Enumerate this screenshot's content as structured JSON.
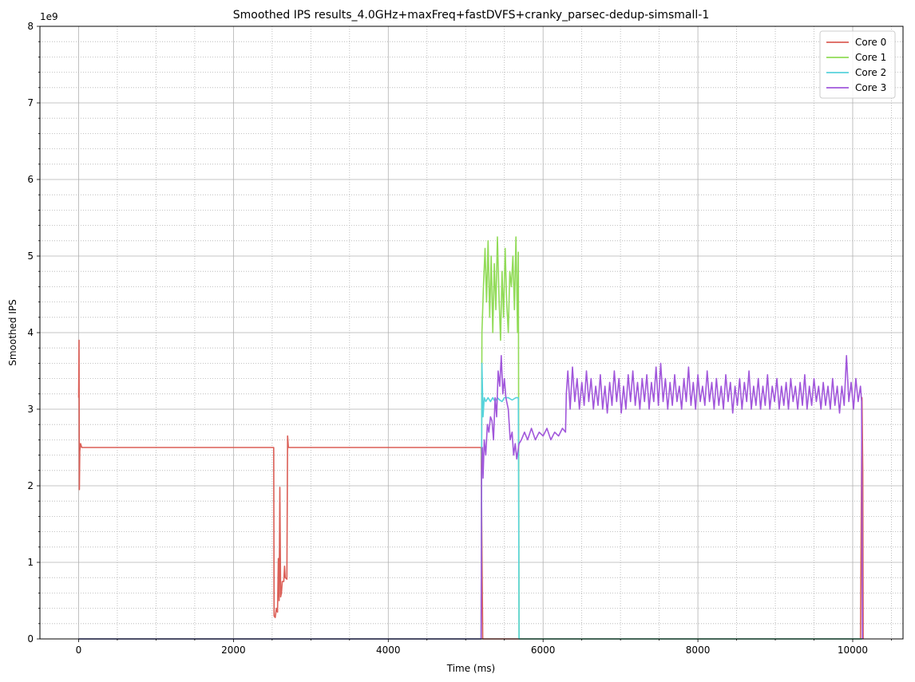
{
  "chart_data": {
    "type": "line",
    "title": "Smoothed IPS results_4.0GHz+maxFreq+fastDVFS+cranky_parsec-dedup-simsmall-1",
    "xlabel": "Time (ms)",
    "ylabel": "Smoothed IPS",
    "y_scale_label": "1e9",
    "xlim": [
      -500,
      10650
    ],
    "ylim": [
      0,
      8
    ],
    "y_multiplier": 1000000000,
    "x_ticks": [
      0,
      2000,
      4000,
      6000,
      8000,
      10000
    ],
    "x_tick_labels": [
      "0",
      "2000",
      "4000",
      "6000",
      "8000",
      "10000"
    ],
    "y_ticks": [
      0,
      1,
      2,
      3,
      4,
      5,
      6,
      7,
      8
    ],
    "y_tick_labels": [
      "0",
      "1",
      "2",
      "3",
      "4",
      "5",
      "6",
      "7",
      "8"
    ],
    "grid": true,
    "minor_grid": true,
    "legend_position": "top-right",
    "series": [
      {
        "name": "Core 0",
        "color": "#db5f57",
        "points": [
          [
            0,
            3.15
          ],
          [
            5,
            3.9
          ],
          [
            10,
            1.95
          ],
          [
            15,
            2.45
          ],
          [
            25,
            2.55
          ],
          [
            40,
            2.5
          ],
          [
            100,
            2.5
          ],
          [
            1000,
            2.5
          ],
          [
            2000,
            2.5
          ],
          [
            2520,
            2.5
          ],
          [
            2525,
            0.3
          ],
          [
            2540,
            0.28
          ],
          [
            2555,
            0.4
          ],
          [
            2570,
            0.35
          ],
          [
            2580,
            1.05
          ],
          [
            2590,
            0.5
          ],
          [
            2600,
            1.98
          ],
          [
            2610,
            0.55
          ],
          [
            2620,
            0.6
          ],
          [
            2630,
            0.75
          ],
          [
            2650,
            0.75
          ],
          [
            2660,
            0.95
          ],
          [
            2670,
            0.8
          ],
          [
            2690,
            0.78
          ],
          [
            2700,
            2.65
          ],
          [
            2710,
            2.5
          ],
          [
            2750,
            2.5
          ],
          [
            3500,
            2.5
          ],
          [
            4500,
            2.5
          ],
          [
            5200,
            2.5
          ],
          [
            5220,
            0.0
          ],
          [
            10100,
            0.0
          ],
          [
            10120,
            3.15
          ],
          [
            10130,
            2.2
          ],
          [
            10135,
            0.0
          ]
        ]
      },
      {
        "name": "Core 1",
        "color": "#91db57",
        "points": [
          [
            0,
            0.0
          ],
          [
            5200,
            0.0
          ],
          [
            5210,
            4.0
          ],
          [
            5230,
            4.6
          ],
          [
            5250,
            5.1
          ],
          [
            5270,
            4.4
          ],
          [
            5290,
            5.2
          ],
          [
            5310,
            4.2
          ],
          [
            5330,
            5.0
          ],
          [
            5350,
            4.0
          ],
          [
            5370,
            4.9
          ],
          [
            5390,
            4.3
          ],
          [
            5410,
            5.25
          ],
          [
            5430,
            4.5
          ],
          [
            5450,
            3.9
          ],
          [
            5470,
            4.8
          ],
          [
            5490,
            4.2
          ],
          [
            5510,
            5.1
          ],
          [
            5530,
            4.4
          ],
          [
            5550,
            4.0
          ],
          [
            5570,
            4.8
          ],
          [
            5590,
            4.6
          ],
          [
            5610,
            5.0
          ],
          [
            5630,
            4.3
          ],
          [
            5650,
            5.25
          ],
          [
            5670,
            4.0
          ],
          [
            5680,
            5.05
          ],
          [
            5690,
            0.0
          ],
          [
            10120,
            0.0
          ]
        ]
      },
      {
        "name": "Core 2",
        "color": "#57d3db",
        "points": [
          [
            0,
            0.0
          ],
          [
            5200,
            0.0
          ],
          [
            5210,
            3.6
          ],
          [
            5225,
            2.9
          ],
          [
            5240,
            3.15
          ],
          [
            5260,
            3.1
          ],
          [
            5290,
            3.15
          ],
          [
            5320,
            3.1
          ],
          [
            5350,
            3.15
          ],
          [
            5380,
            3.1
          ],
          [
            5410,
            3.15
          ],
          [
            5440,
            3.12
          ],
          [
            5470,
            3.1
          ],
          [
            5500,
            3.15
          ],
          [
            5550,
            3.15
          ],
          [
            5600,
            3.12
          ],
          [
            5650,
            3.15
          ],
          [
            5680,
            3.15
          ],
          [
            5690,
            0.0
          ],
          [
            10120,
            0.0
          ]
        ]
      },
      {
        "name": "Core 3",
        "color": "#a157db",
        "points": [
          [
            0,
            0.0
          ],
          [
            5200,
            0.0
          ],
          [
            5205,
            2.2
          ],
          [
            5215,
            2.5
          ],
          [
            5225,
            2.1
          ],
          [
            5240,
            2.6
          ],
          [
            5260,
            2.4
          ],
          [
            5280,
            2.8
          ],
          [
            5300,
            2.7
          ],
          [
            5320,
            2.9
          ],
          [
            5340,
            2.85
          ],
          [
            5360,
            2.6
          ],
          [
            5380,
            3.15
          ],
          [
            5400,
            2.9
          ],
          [
            5420,
            3.5
          ],
          [
            5440,
            3.3
          ],
          [
            5460,
            3.7
          ],
          [
            5480,
            3.2
          ],
          [
            5500,
            3.4
          ],
          [
            5520,
            3.15
          ],
          [
            5550,
            3.0
          ],
          [
            5575,
            2.6
          ],
          [
            5600,
            2.7
          ],
          [
            5620,
            2.4
          ],
          [
            5640,
            2.55
          ],
          [
            5660,
            2.35
          ],
          [
            5690,
            2.55
          ],
          [
            5720,
            2.6
          ],
          [
            5760,
            2.7
          ],
          [
            5800,
            2.6
          ],
          [
            5850,
            2.75
          ],
          [
            5900,
            2.6
          ],
          [
            5950,
            2.7
          ],
          [
            6000,
            2.65
          ],
          [
            6050,
            2.75
          ],
          [
            6100,
            2.6
          ],
          [
            6150,
            2.7
          ],
          [
            6200,
            2.65
          ],
          [
            6250,
            2.75
          ],
          [
            6290,
            2.7
          ],
          [
            6300,
            3.2
          ],
          [
            6320,
            3.5
          ],
          [
            6350,
            3.0
          ],
          [
            6380,
            3.55
          ],
          [
            6410,
            3.1
          ],
          [
            6440,
            3.4
          ],
          [
            6470,
            3.0
          ],
          [
            6500,
            3.35
          ],
          [
            6530,
            3.05
          ],
          [
            6560,
            3.5
          ],
          [
            6590,
            3.1
          ],
          [
            6620,
            3.4
          ],
          [
            6650,
            3.0
          ],
          [
            6680,
            3.3
          ],
          [
            6710,
            3.05
          ],
          [
            6740,
            3.45
          ],
          [
            6770,
            3.0
          ],
          [
            6800,
            3.3
          ],
          [
            6830,
            2.95
          ],
          [
            6860,
            3.35
          ],
          [
            6890,
            3.05
          ],
          [
            6920,
            3.5
          ],
          [
            6950,
            3.1
          ],
          [
            6980,
            3.4
          ],
          [
            7010,
            2.95
          ],
          [
            7040,
            3.3
          ],
          [
            7070,
            3.0
          ],
          [
            7100,
            3.45
          ],
          [
            7130,
            3.1
          ],
          [
            7160,
            3.5
          ],
          [
            7190,
            3.05
          ],
          [
            7220,
            3.35
          ],
          [
            7250,
            3.0
          ],
          [
            7280,
            3.4
          ],
          [
            7310,
            3.1
          ],
          [
            7340,
            3.45
          ],
          [
            7370,
            3.0
          ],
          [
            7400,
            3.35
          ],
          [
            7430,
            3.1
          ],
          [
            7460,
            3.55
          ],
          [
            7490,
            3.05
          ],
          [
            7520,
            3.6
          ],
          [
            7550,
            3.1
          ],
          [
            7580,
            3.4
          ],
          [
            7610,
            3.0
          ],
          [
            7640,
            3.35
          ],
          [
            7670,
            3.05
          ],
          [
            7700,
            3.45
          ],
          [
            7730,
            3.1
          ],
          [
            7760,
            3.3
          ],
          [
            7790,
            3.0
          ],
          [
            7820,
            3.4
          ],
          [
            7850,
            3.1
          ],
          [
            7880,
            3.55
          ],
          [
            7910,
            3.05
          ],
          [
            7940,
            3.35
          ],
          [
            7970,
            3.0
          ],
          [
            8000,
            3.45
          ],
          [
            8030,
            3.1
          ],
          [
            8060,
            3.3
          ],
          [
            8090,
            3.05
          ],
          [
            8120,
            3.5
          ],
          [
            8150,
            3.1
          ],
          [
            8180,
            3.35
          ],
          [
            8210,
            3.0
          ],
          [
            8240,
            3.4
          ],
          [
            8270,
            3.05
          ],
          [
            8300,
            3.3
          ],
          [
            8330,
            3.0
          ],
          [
            8360,
            3.45
          ],
          [
            8390,
            3.1
          ],
          [
            8420,
            3.35
          ],
          [
            8450,
            2.95
          ],
          [
            8480,
            3.3
          ],
          [
            8510,
            3.05
          ],
          [
            8540,
            3.4
          ],
          [
            8570,
            3.0
          ],
          [
            8600,
            3.35
          ],
          [
            8630,
            3.1
          ],
          [
            8660,
            3.5
          ],
          [
            8690,
            3.0
          ],
          [
            8720,
            3.3
          ],
          [
            8750,
            3.05
          ],
          [
            8780,
            3.4
          ],
          [
            8810,
            3.0
          ],
          [
            8840,
            3.3
          ],
          [
            8870,
            3.05
          ],
          [
            8900,
            3.45
          ],
          [
            8930,
            3.0
          ],
          [
            8960,
            3.3
          ],
          [
            8990,
            3.1
          ],
          [
            9020,
            3.4
          ],
          [
            9050,
            3.0
          ],
          [
            9080,
            3.3
          ],
          [
            9110,
            3.05
          ],
          [
            9140,
            3.35
          ],
          [
            9170,
            3.0
          ],
          [
            9200,
            3.4
          ],
          [
            9230,
            3.1
          ],
          [
            9260,
            3.3
          ],
          [
            9290,
            3.0
          ],
          [
            9320,
            3.35
          ],
          [
            9350,
            3.05
          ],
          [
            9380,
            3.45
          ],
          [
            9410,
            3.0
          ],
          [
            9440,
            3.3
          ],
          [
            9470,
            3.05
          ],
          [
            9500,
            3.4
          ],
          [
            9530,
            3.1
          ],
          [
            9560,
            3.3
          ],
          [
            9590,
            3.0
          ],
          [
            9620,
            3.35
          ],
          [
            9650,
            3.05
          ],
          [
            9680,
            3.3
          ],
          [
            9710,
            3.0
          ],
          [
            9740,
            3.4
          ],
          [
            9770,
            3.05
          ],
          [
            9800,
            3.3
          ],
          [
            9830,
            2.95
          ],
          [
            9860,
            3.3
          ],
          [
            9890,
            3.05
          ],
          [
            9920,
            3.7
          ],
          [
            9950,
            3.1
          ],
          [
            9980,
            3.35
          ],
          [
            10010,
            3.0
          ],
          [
            10040,
            3.4
          ],
          [
            10070,
            3.1
          ],
          [
            10100,
            3.3
          ],
          [
            10115,
            3.1
          ],
          [
            10125,
            0.0
          ]
        ]
      }
    ]
  }
}
